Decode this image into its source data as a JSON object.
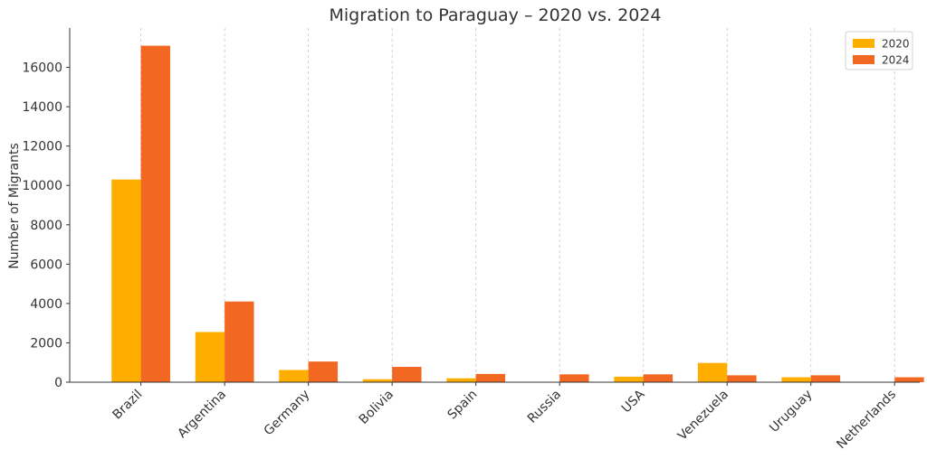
{
  "chart_data": {
    "type": "bar",
    "title": "Migration to Paraguay – 2020 vs. 2024",
    "xlabel": "",
    "ylabel": "Number of Migrants",
    "categories": [
      "Brazil",
      "Argentina",
      "Germany",
      "Bolivia",
      "Spain",
      "Russia",
      "USA",
      "Venezuela",
      "Uruguay",
      "Netherlands"
    ],
    "series": [
      {
        "name": "2020",
        "color": "#FFAE00",
        "values": [
          10300,
          2550,
          620,
          150,
          200,
          0,
          280,
          980,
          250,
          0
        ]
      },
      {
        "name": "2024",
        "color": "#F26722",
        "values": [
          17100,
          4100,
          1050,
          780,
          420,
          400,
          400,
          350,
          350,
          250
        ]
      }
    ],
    "ylim": [
      0,
      18000
    ],
    "yticks": [
      0,
      2000,
      4000,
      6000,
      8000,
      10000,
      12000,
      14000,
      16000
    ],
    "grid": "x-dashed",
    "legend_position": "top-right"
  }
}
